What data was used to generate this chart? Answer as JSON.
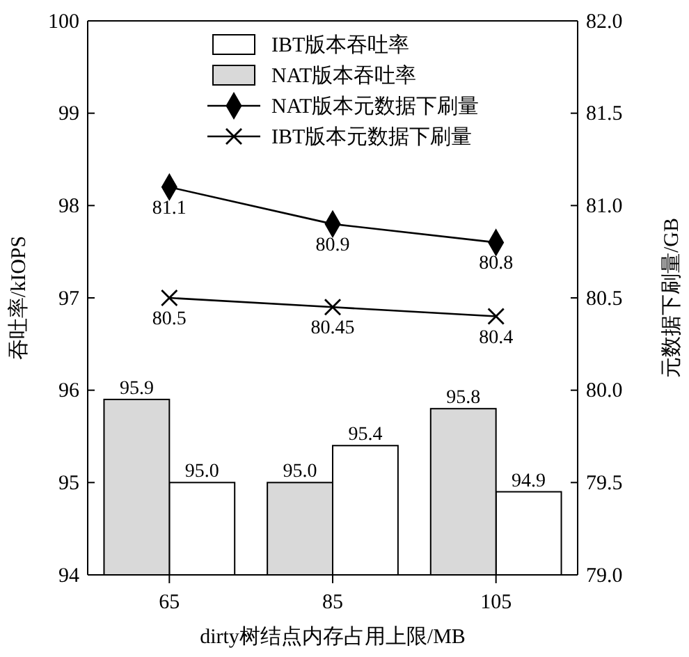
{
  "chart_data": {
    "type": "bar",
    "xlabel": "dirty树结点内存占用上限/MB",
    "ylabel": "吞吐率/kIOPS",
    "y2label": "元数据下刷量/GB",
    "categories": [
      "65",
      "85",
      "105"
    ],
    "series": [
      {
        "name": "IBT版本吞吐率",
        "color": "#ffffff",
        "values": [
          95.0,
          95.4,
          94.9
        ],
        "value_labels": [
          "95.0",
          "95.4",
          "94.9"
        ]
      },
      {
        "name": "NAT版本吞吐率",
        "color": "#d9d9d9",
        "values": [
          95.9,
          95.0,
          95.8
        ],
        "value_labels": [
          "95.9",
          "95.0",
          "95.8"
        ]
      },
      {
        "name": "NAT版本元数据下刷量",
        "type": "line",
        "axis": "y2",
        "marker": "diamond",
        "color": "#000000",
        "values": [
          81.1,
          80.9,
          80.8
        ],
        "value_labels": [
          "81.1",
          "80.9",
          "80.8"
        ]
      },
      {
        "name": "IBT版本元数据下刷量",
        "type": "line",
        "axis": "y2",
        "marker": "cross",
        "color": "#000000",
        "values": [
          80.5,
          80.45,
          80.4
        ],
        "value_labels": [
          "80.5",
          "80.45",
          "80.4"
        ]
      }
    ],
    "ylim": [
      94,
      100
    ],
    "yticks": [
      94,
      95,
      96,
      97,
      98,
      99,
      100
    ],
    "y2lim": [
      79,
      82
    ],
    "y2ticks": [
      {
        "value": 79,
        "label": "79.0"
      },
      {
        "value": 79.5,
        "label": "79.5"
      },
      {
        "value": 80,
        "label": "80.0"
      },
      {
        "value": 80.5,
        "label": "80.5"
      },
      {
        "value": 81,
        "label": "81.0"
      },
      {
        "value": 81.5,
        "label": "81.5"
      },
      {
        "value": 82,
        "label": "82.0"
      }
    ],
    "legend": "top",
    "grid": false
  }
}
